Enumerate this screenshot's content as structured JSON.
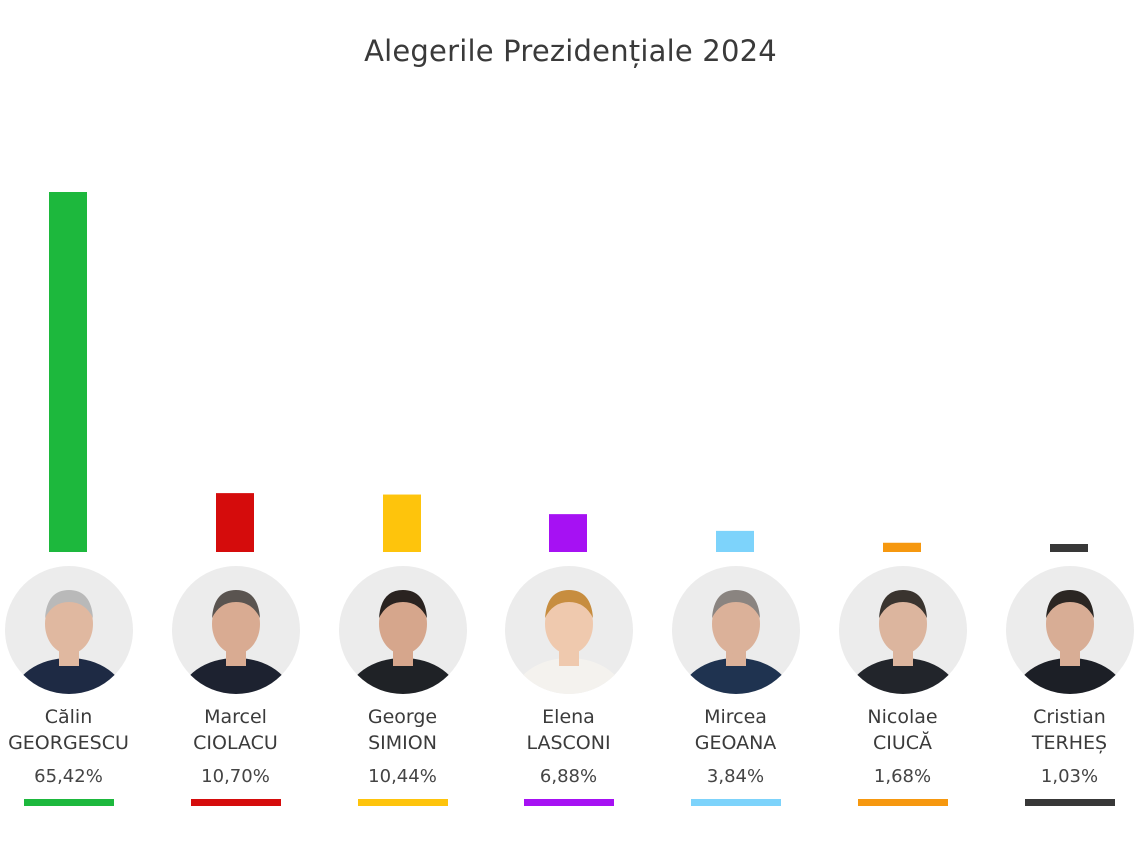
{
  "chart_data": {
    "type": "bar",
    "title": "Alegerile Prezidențiale 2024",
    "xlabel": "",
    "ylabel": "",
    "grid": false,
    "legend": "none",
    "unit": "%",
    "categories": [
      "Călin GEORGESCU",
      "Marcel CIOLACU",
      "George SIMION",
      "Elena LASCONI",
      "Mircea GEOANA",
      "Nicolae CIUCĂ",
      "Cristian TERHEȘ"
    ],
    "values": [
      65.42,
      10.7,
      10.44,
      6.88,
      3.84,
      1.68,
      1.03
    ],
    "value_labels": [
      "65,42%",
      "10,70%",
      "10,44%",
      "6,88%",
      "3,84%",
      "1,68%",
      "1,03%"
    ],
    "colors": [
      "#1db83d",
      "#d50c0c",
      "#fec40c",
      "#a611f3",
      "#7dd3fb",
      "#f6980f",
      "#383838"
    ],
    "ylim": [
      0,
      65.42
    ]
  },
  "candidates": [
    {
      "first": "Călin",
      "last": "GEORGESCU",
      "pct": "65,42%",
      "color": "#1db83d",
      "photo": "person-photo"
    },
    {
      "first": "Marcel",
      "last": "CIOLACU",
      "pct": "10,70%",
      "color": "#d50c0c",
      "photo": "person-photo"
    },
    {
      "first": "George",
      "last": "SIMION",
      "pct": "10,44%",
      "color": "#fec40c",
      "photo": "person-photo"
    },
    {
      "first": "Elena",
      "last": "LASCONI",
      "pct": "6,88%",
      "color": "#a611f3",
      "photo": "person-photo"
    },
    {
      "first": "Mircea",
      "last": "GEOANA",
      "pct": "3,84%",
      "color": "#7dd3fb",
      "photo": "person-photo"
    },
    {
      "first": "Nicolae",
      "last": "CIUCĂ",
      "pct": "1,68%",
      "color": "#f6980f",
      "photo": "person-photo"
    },
    {
      "first": "Cristian",
      "last": "TERHEȘ",
      "pct": "1,03%",
      "color": "#383838",
      "photo": "person-photo"
    }
  ]
}
